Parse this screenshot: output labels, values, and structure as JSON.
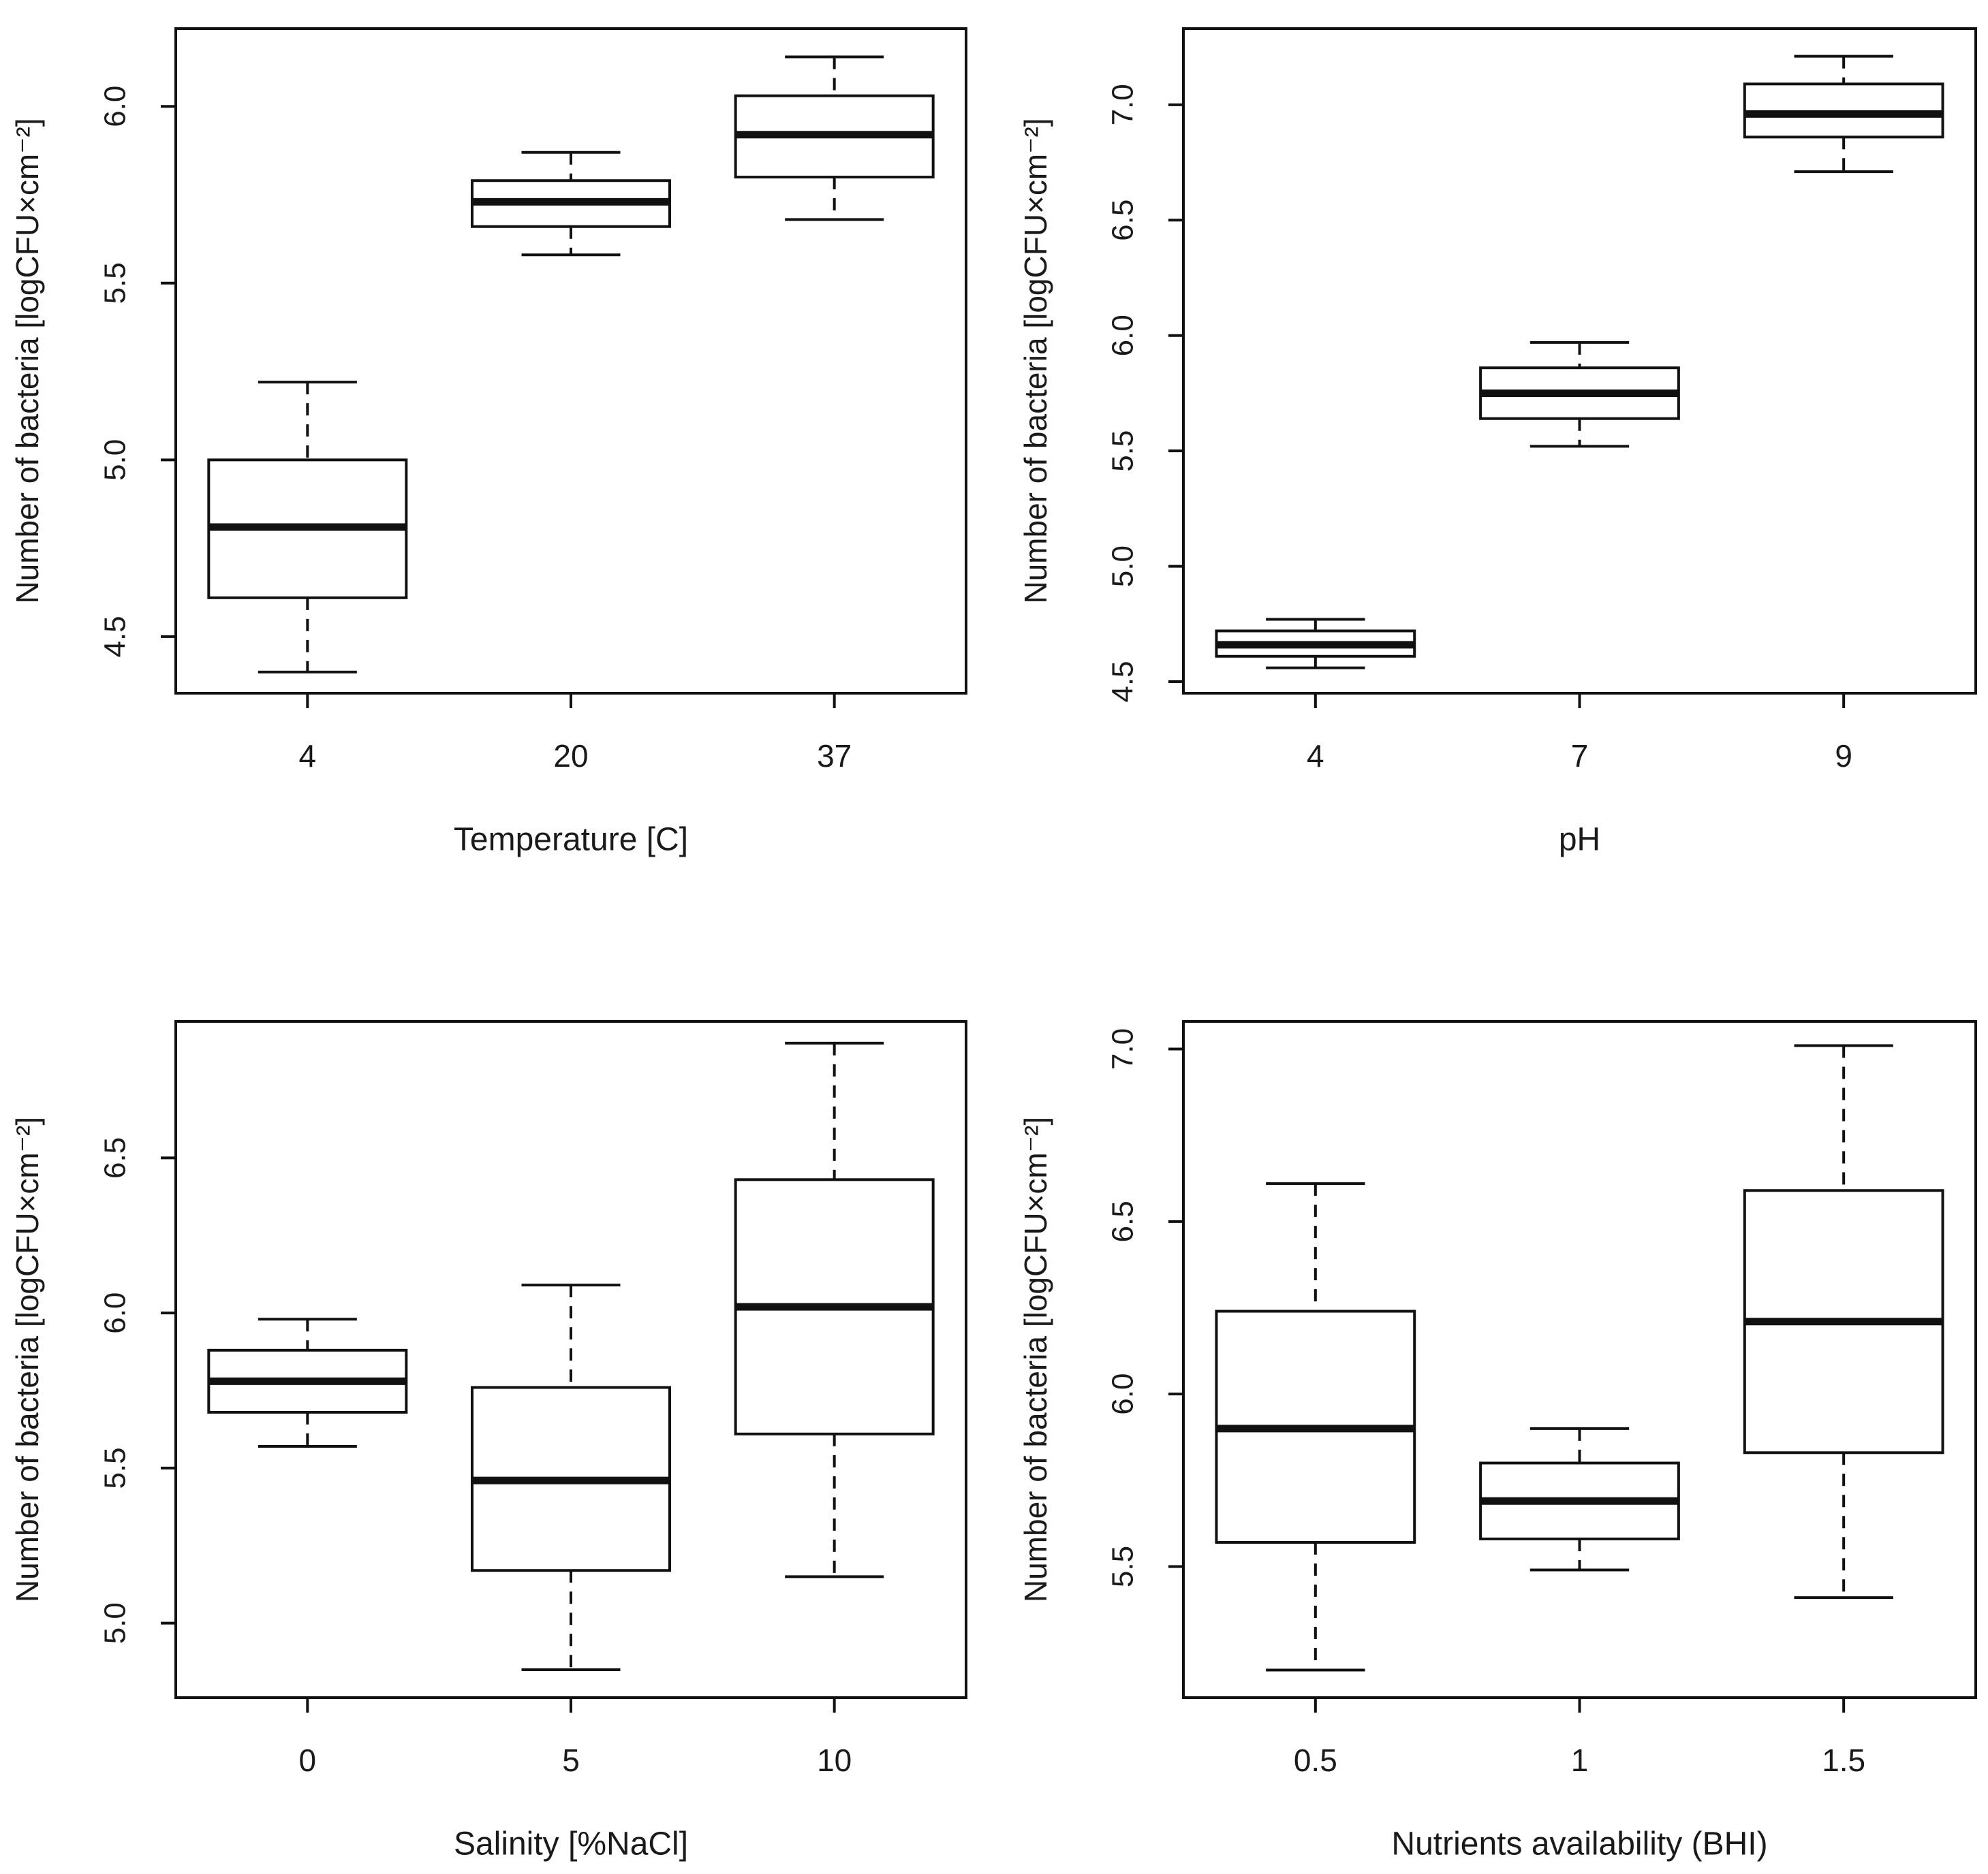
{
  "chart_data": [
    {
      "type": "boxplot",
      "id": "temperature",
      "xlabel": "Temperature [C]",
      "ylabel": "Number of bacteria [logCFU×cm⁻²]",
      "ylim": [
        4.34,
        6.22
      ],
      "yticks": [
        "4.5",
        "5.0",
        "5.5",
        "6.0"
      ],
      "categories": [
        "4",
        "20",
        "37"
      ],
      "boxes": [
        {
          "min": 4.4,
          "q1": 4.61,
          "median": 4.81,
          "q3": 5.0,
          "max": 5.22
        },
        {
          "min": 5.58,
          "q1": 5.66,
          "median": 5.73,
          "q3": 5.79,
          "max": 5.87
        },
        {
          "min": 5.68,
          "q1": 5.8,
          "median": 5.92,
          "q3": 6.03,
          "max": 6.14
        }
      ]
    },
    {
      "type": "boxplot",
      "id": "ph",
      "xlabel": "pH",
      "ylabel": "Number of bacteria [logCFU×cm⁻²]",
      "ylim": [
        4.45,
        7.33
      ],
      "yticks": [
        "4.5",
        "5.0",
        "5.5",
        "6.0",
        "6.5",
        "7.0"
      ],
      "categories": [
        "4",
        "7",
        "9"
      ],
      "boxes": [
        {
          "min": 4.56,
          "q1": 4.61,
          "median": 4.66,
          "q3": 4.72,
          "max": 4.77
        },
        {
          "min": 5.52,
          "q1": 5.64,
          "median": 5.75,
          "q3": 5.86,
          "max": 5.97
        },
        {
          "min": 6.71,
          "q1": 6.86,
          "median": 6.96,
          "q3": 7.09,
          "max": 7.21
        }
      ]
    },
    {
      "type": "boxplot",
      "id": "salinity",
      "xlabel": "Salinity [%NaCl]",
      "ylabel": "Number of bacteria [logCFU×cm⁻²]",
      "ylim": [
        4.76,
        6.94
      ],
      "yticks": [
        "5.0",
        "5.5",
        "6.0",
        "6.5"
      ],
      "categories": [
        "0",
        "5",
        "10"
      ],
      "boxes": [
        {
          "min": 5.57,
          "q1": 5.68,
          "median": 5.78,
          "q3": 5.88,
          "max": 5.98
        },
        {
          "min": 4.85,
          "q1": 5.17,
          "median": 5.46,
          "q3": 5.76,
          "max": 6.09
        },
        {
          "min": 5.15,
          "q1": 5.61,
          "median": 6.02,
          "q3": 6.43,
          "max": 6.87
        }
      ]
    },
    {
      "type": "boxplot",
      "id": "nutrients",
      "xlabel": "Nutrients availability (BHI)",
      "ylabel": "Number of bacteria [logCFU×cm⁻²]",
      "ylim": [
        5.12,
        7.08
      ],
      "yticks": [
        "5.5",
        "6.0",
        "6.5",
        "7.0"
      ],
      "categories": [
        "0.5",
        "1",
        "1.5"
      ],
      "boxes": [
        {
          "min": 5.2,
          "q1": 5.57,
          "median": 5.9,
          "q3": 6.24,
          "max": 6.61
        },
        {
          "min": 5.49,
          "q1": 5.58,
          "median": 5.69,
          "q3": 5.8,
          "max": 5.9
        },
        {
          "min": 5.41,
          "q1": 5.83,
          "median": 6.21,
          "q3": 6.59,
          "max": 7.01
        }
      ]
    }
  ]
}
